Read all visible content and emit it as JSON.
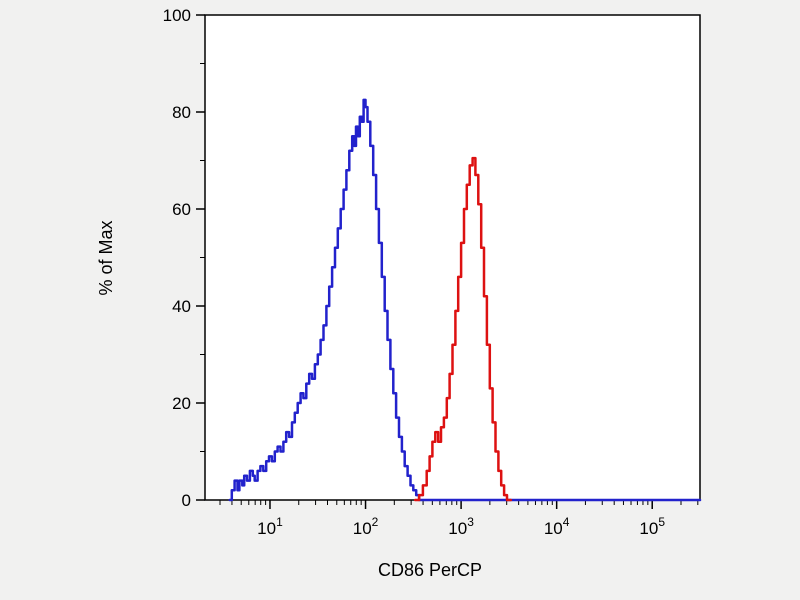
{
  "chart_data": {
    "type": "line",
    "subtype": "flow-cytometry-step-histogram",
    "title": "",
    "xlabel": "CD86 PerCP",
    "ylabel": "% of Max",
    "x_scale": "log10",
    "xlim_log": [
      0.32,
      5.5
    ],
    "ylim": [
      0,
      100
    ],
    "grid": false,
    "legend": "none",
    "colors": {
      "background": "#f1f1f0",
      "plot_background": "#ffffff",
      "axis": "#000000",
      "blue_series": "#2222cc",
      "red_series": "#dd1111"
    },
    "x_major_ticks": [
      {
        "base": "10",
        "exp": "1",
        "log": 1
      },
      {
        "base": "10",
        "exp": "2",
        "log": 2
      },
      {
        "base": "10",
        "exp": "3",
        "log": 3
      },
      {
        "base": "10",
        "exp": "4",
        "log": 4
      },
      {
        "base": "10",
        "exp": "5",
        "log": 5
      }
    ],
    "y_major_ticks": [
      0,
      20,
      40,
      60,
      80,
      100
    ],
    "y_minor_ticks": [
      10,
      30,
      50,
      70,
      90
    ],
    "series": [
      {
        "name": "blue-histogram-curve",
        "color": "#2222cc",
        "peak_x": 100,
        "peak_y": 82.5,
        "points": [
          [
            0.58,
            0
          ],
          [
            0.6,
            2
          ],
          [
            0.63,
            4
          ],
          [
            0.66,
            2
          ],
          [
            0.68,
            4
          ],
          [
            0.71,
            3
          ],
          [
            0.73,
            5
          ],
          [
            0.76,
            4
          ],
          [
            0.79,
            6
          ],
          [
            0.82,
            5
          ],
          [
            0.84,
            4
          ],
          [
            0.87,
            6
          ],
          [
            0.9,
            7
          ],
          [
            0.93,
            6
          ],
          [
            0.96,
            8
          ],
          [
            0.99,
            9
          ],
          [
            1.02,
            8
          ],
          [
            1.05,
            10
          ],
          [
            1.08,
            11
          ],
          [
            1.11,
            10
          ],
          [
            1.14,
            12
          ],
          [
            1.17,
            14
          ],
          [
            1.2,
            13
          ],
          [
            1.23,
            16
          ],
          [
            1.26,
            18
          ],
          [
            1.29,
            20
          ],
          [
            1.32,
            22
          ],
          [
            1.35,
            21
          ],
          [
            1.38,
            24
          ],
          [
            1.41,
            26
          ],
          [
            1.44,
            25
          ],
          [
            1.47,
            28
          ],
          [
            1.5,
            30
          ],
          [
            1.53,
            33
          ],
          [
            1.56,
            36
          ],
          [
            1.59,
            40
          ],
          [
            1.62,
            44
          ],
          [
            1.65,
            48
          ],
          [
            1.68,
            52
          ],
          [
            1.71,
            56
          ],
          [
            1.74,
            60
          ],
          [
            1.77,
            64
          ],
          [
            1.8,
            68
          ],
          [
            1.83,
            72
          ],
          [
            1.86,
            75
          ],
          [
            1.88,
            73
          ],
          [
            1.9,
            77
          ],
          [
            1.92,
            75
          ],
          [
            1.94,
            79
          ],
          [
            1.96,
            78
          ],
          [
            1.98,
            82.5
          ],
          [
            2.0,
            81
          ],
          [
            2.02,
            78
          ],
          [
            2.05,
            73
          ],
          [
            2.08,
            67
          ],
          [
            2.11,
            60
          ],
          [
            2.14,
            53
          ],
          [
            2.17,
            46
          ],
          [
            2.2,
            39
          ],
          [
            2.23,
            33
          ],
          [
            2.26,
            27
          ],
          [
            2.29,
            22
          ],
          [
            2.32,
            17
          ],
          [
            2.35,
            13
          ],
          [
            2.38,
            10
          ],
          [
            2.41,
            7
          ],
          [
            2.44,
            5
          ],
          [
            2.47,
            3
          ],
          [
            2.5,
            2
          ],
          [
            2.53,
            1
          ],
          [
            2.56,
            0
          ],
          [
            5.5,
            0
          ]
        ]
      },
      {
        "name": "red-histogram-curve",
        "color": "#dd1111",
        "peak_x": 1300,
        "peak_y": 70.5,
        "points": [
          [
            2.52,
            0
          ],
          [
            2.56,
            1
          ],
          [
            2.6,
            3
          ],
          [
            2.64,
            6
          ],
          [
            2.67,
            9
          ],
          [
            2.7,
            12
          ],
          [
            2.73,
            14
          ],
          [
            2.76,
            12
          ],
          [
            2.79,
            15
          ],
          [
            2.82,
            17
          ],
          [
            2.85,
            21
          ],
          [
            2.88,
            26
          ],
          [
            2.91,
            32
          ],
          [
            2.94,
            39
          ],
          [
            2.97,
            46
          ],
          [
            3.0,
            53
          ],
          [
            3.03,
            60
          ],
          [
            3.06,
            65
          ],
          [
            3.09,
            69
          ],
          [
            3.12,
            70.5
          ],
          [
            3.15,
            67
          ],
          [
            3.18,
            61
          ],
          [
            3.21,
            52
          ],
          [
            3.24,
            42
          ],
          [
            3.27,
            32
          ],
          [
            3.3,
            23
          ],
          [
            3.33,
            16
          ],
          [
            3.36,
            10
          ],
          [
            3.39,
            6
          ],
          [
            3.42,
            3
          ],
          [
            3.45,
            1
          ],
          [
            3.48,
            0
          ],
          [
            3.52,
            0
          ]
        ]
      }
    ]
  }
}
